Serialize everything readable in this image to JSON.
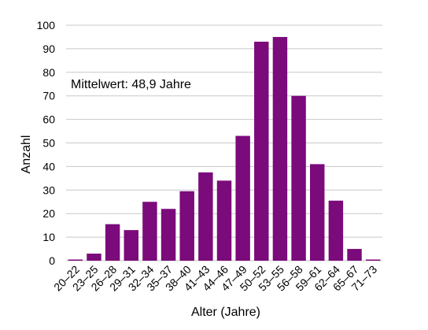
{
  "chart_data": {
    "type": "bar",
    "categories": [
      "20–22",
      "23–25",
      "26–28",
      "29–31",
      "32–34",
      "35–37",
      "38–40",
      "41–43",
      "44–46",
      "47–49",
      "50–52",
      "53–55",
      "56–58",
      "59–61",
      "62–64",
      "65–67",
      "71–73"
    ],
    "values": [
      0.5,
      3,
      15.5,
      13,
      25,
      22,
      29.5,
      37.5,
      34,
      53,
      93,
      95,
      70,
      41,
      25.5,
      5,
      0.5
    ],
    "xlabel": "Alter (Jahre)",
    "ylabel": "Anzahl",
    "ylim": [
      0,
      100
    ],
    "yticks": [
      0,
      10,
      20,
      30,
      40,
      50,
      60,
      70,
      80,
      90,
      100
    ],
    "grid": true,
    "bar_color": "#7b0a7b",
    "annotation": "Mittelwert: 48,9 Jahre"
  }
}
